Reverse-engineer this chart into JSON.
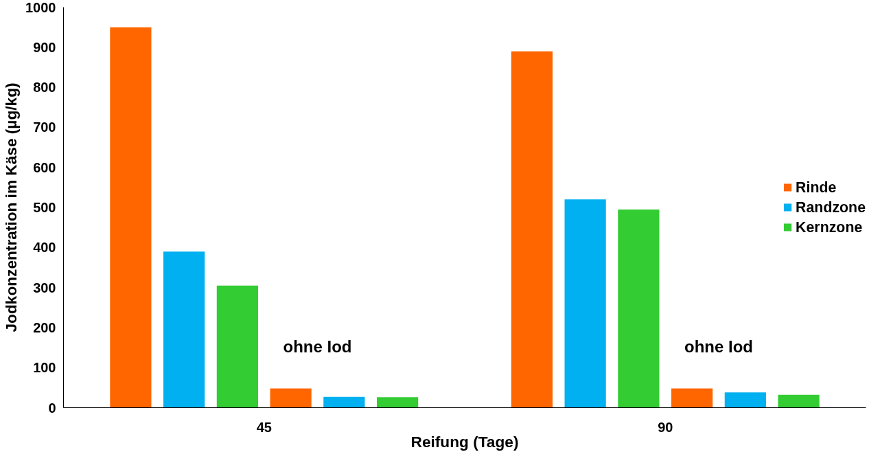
{
  "chart_data": {
    "type": "bar",
    "xlabel": "Reifung (Tage)",
    "ylabel": "Jodkonzentration im Käse (µg/kg)",
    "categories": [
      "45",
      "90"
    ],
    "series": [
      {
        "name": "Rinde",
        "color": "#ff6600",
        "values": [
          950,
          890
        ]
      },
      {
        "name": "Randzone",
        "color": "#00b0f0",
        "values": [
          390,
          520
        ]
      },
      {
        "name": "Kernzone",
        "color": "#33cc33",
        "values": [
          305,
          495
        ]
      },
      {
        "color": "#ff6600",
        "values": [
          48,
          48
        ]
      },
      {
        "color": "#00b0f0",
        "values": [
          27,
          38
        ]
      },
      {
        "color": "#33cc33",
        "values": [
          26,
          32
        ]
      }
    ],
    "ylim": [
      0,
      1000
    ],
    "yticks": [
      0,
      100,
      200,
      300,
      400,
      500,
      600,
      700,
      800,
      900,
      1000
    ],
    "grid": false,
    "legend": "right",
    "annotations": [
      "ohne Iod",
      "ohne Iod"
    ]
  }
}
